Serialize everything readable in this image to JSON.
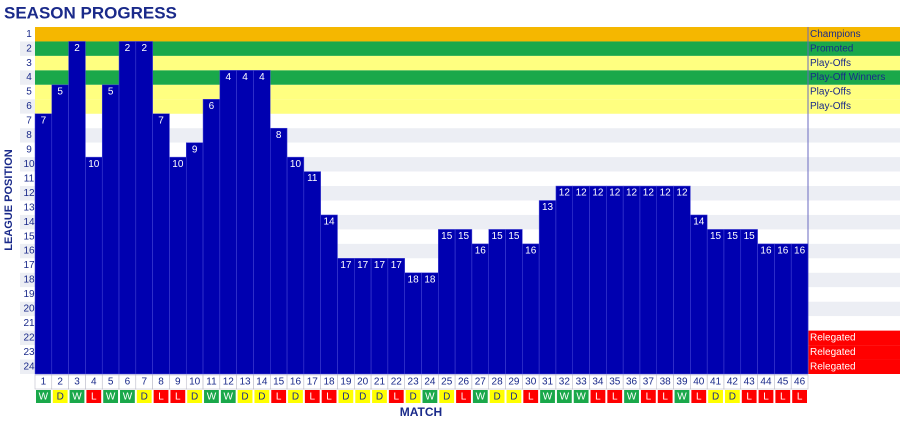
{
  "chart_data": {
    "type": "position_bars",
    "title": "SEASON PROGRESS",
    "x_label": "MATCH",
    "y_label": "LEAGUE POSITION",
    "x": [
      1,
      2,
      3,
      4,
      5,
      6,
      7,
      8,
      9,
      10,
      11,
      12,
      13,
      14,
      15,
      16,
      17,
      18,
      19,
      20,
      21,
      22,
      23,
      24,
      25,
      26,
      27,
      28,
      29,
      30,
      31,
      32,
      33,
      34,
      35,
      36,
      37,
      38,
      39,
      40,
      41,
      42,
      43,
      44,
      45,
      46
    ],
    "values": [
      7,
      5,
      2,
      10,
      5,
      2,
      2,
      7,
      10,
      9,
      6,
      4,
      4,
      4,
      8,
      10,
      11,
      14,
      17,
      17,
      17,
      17,
      18,
      18,
      15,
      15,
      16,
      15,
      15,
      16,
      13,
      12,
      12,
      12,
      12,
      12,
      12,
      12,
      12,
      14,
      15,
      15,
      15,
      16,
      16,
      16
    ],
    "results": [
      "W",
      "D",
      "W",
      "L",
      "W",
      "W",
      "D",
      "L",
      "L",
      "D",
      "W",
      "W",
      "D",
      "D",
      "L",
      "D",
      "L",
      "L",
      "D",
      "D",
      "D",
      "L",
      "D",
      "W",
      "D",
      "L",
      "W",
      "D",
      "D",
      "L",
      "W",
      "W",
      "W",
      "L",
      "L",
      "W",
      "L",
      "L",
      "W",
      "L",
      "D",
      "D",
      "L",
      "L",
      "L",
      "L"
    ],
    "result_colors": {
      "W": "#1aa84a",
      "D": "#ffff00",
      "L": "#ff0000"
    },
    "color": "#0000b0",
    "xlim": [
      0.5,
      46.5
    ],
    "ylim": [
      24.5,
      0.5
    ],
    "yticks": [
      1,
      2,
      3,
      4,
      5,
      6,
      7,
      8,
      9,
      10,
      11,
      12,
      13,
      14,
      15,
      16,
      17,
      18,
      19,
      20,
      21,
      22,
      23,
      24
    ],
    "zones": [
      {
        "position": 1,
        "label": "Champions",
        "color": "#f5b700"
      },
      {
        "position": 2,
        "label": "Promoted",
        "color": "#1aa84a"
      },
      {
        "position": 3,
        "label": "Play-Offs",
        "color": "#ffff80"
      },
      {
        "position": 4,
        "label": "Play-Off Winners",
        "color": "#1aa84a"
      },
      {
        "position": 5,
        "label": "Play-Offs",
        "color": "#ffff80"
      },
      {
        "position": 6,
        "label": "Play-Offs",
        "color": "#ffff80"
      },
      {
        "position": 22,
        "label": "Relegated",
        "color": "#ff0000"
      },
      {
        "position": 23,
        "label": "Relegated",
        "color": "#ff0000"
      },
      {
        "position": 24,
        "label": "Relegated",
        "color": "#ff0000"
      }
    ]
  }
}
